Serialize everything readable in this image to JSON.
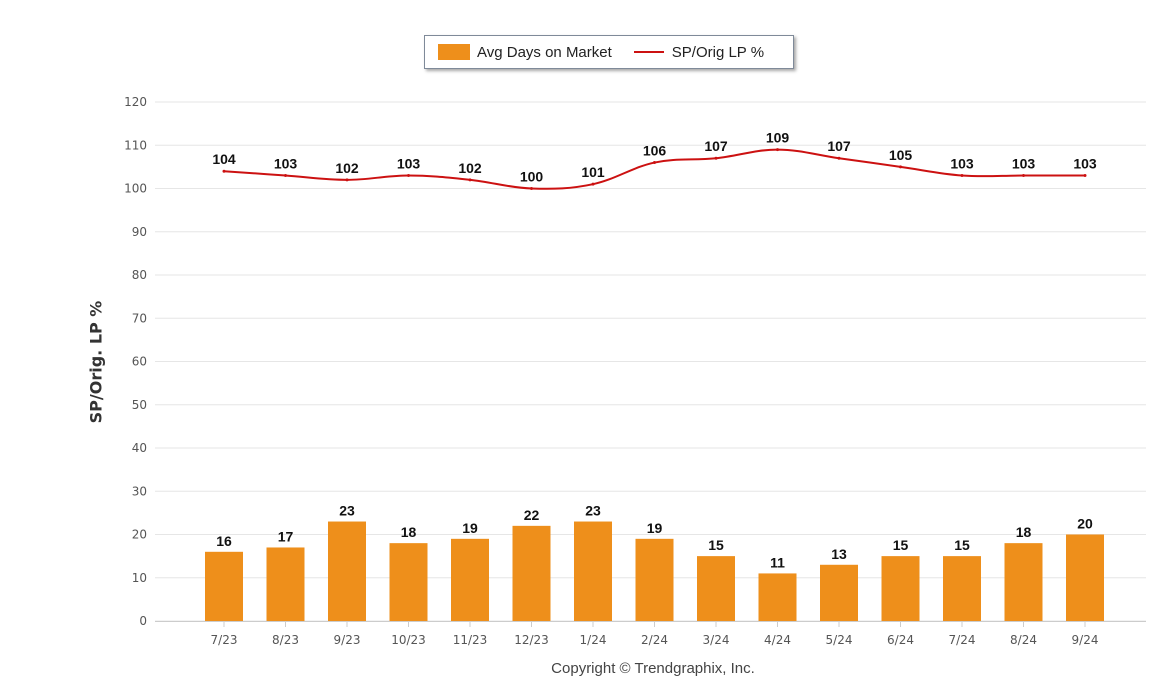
{
  "chart_data": {
    "type": "bar",
    "categories": [
      "7/23",
      "8/23",
      "9/23",
      "10/23",
      "11/23",
      "12/23",
      "1/24",
      "2/24",
      "3/24",
      "4/24",
      "5/24",
      "6/24",
      "7/24",
      "8/24",
      "9/24"
    ],
    "series": [
      {
        "name": "Avg Days on Market",
        "type": "bar",
        "color": "#EE8F1B",
        "values": [
          16,
          17,
          23,
          18,
          19,
          22,
          23,
          19,
          15,
          11,
          13,
          15,
          15,
          18,
          20
        ]
      },
      {
        "name": "SP/Orig LP %",
        "type": "line",
        "color": "#CC1111",
        "values": [
          104,
          103,
          102,
          103,
          102,
          100,
          101,
          106,
          107,
          109,
          107,
          105,
          103,
          103,
          103
        ]
      }
    ],
    "ylabel": "SP/Orig. LP %",
    "ylim": [
      0,
      120
    ],
    "yticks": [
      0,
      10,
      20,
      30,
      40,
      50,
      60,
      70,
      80,
      90,
      100,
      110,
      120
    ],
    "grid": true,
    "legend": "top-center",
    "footer": "Copyright © Trendgraphix, Inc."
  }
}
